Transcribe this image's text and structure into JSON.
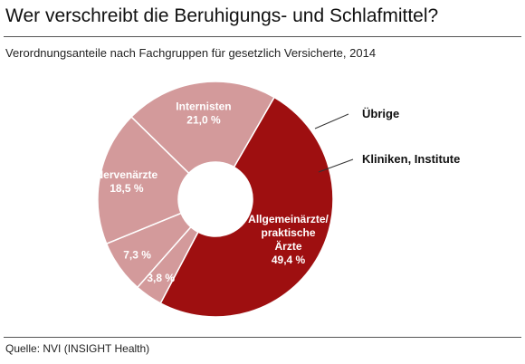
{
  "title": "Wer verschreibt die Beruhigungs- und Schlafmittel?",
  "subtitle": "Verordnungsanteile nach Fachgruppen für gesetzlich Versicherte, 2014",
  "source": "Quelle: NVI (INSIGHT Health)",
  "chart_data": {
    "type": "pie",
    "donut": true,
    "slices": [
      {
        "label": [
          "Allgemeinärzte/",
          "praktische",
          "Ärzte"
        ],
        "value": 49.4,
        "value_text": "49,4 %",
        "color": "#9e0f10"
      },
      {
        "label": [],
        "external_label": "Übrige",
        "value": 3.8,
        "value_text": "3,8 %",
        "color": "#d39a9b"
      },
      {
        "label": [],
        "external_label": "Kliniken, Institute",
        "value": 7.3,
        "value_text": "7,3 %",
        "color": "#d39a9b"
      },
      {
        "label": [
          "Nervenärzte"
        ],
        "value": 18.5,
        "value_text": "18,5 %",
        "color": "#d39a9b"
      },
      {
        "label": [
          "Internisten"
        ],
        "value": 21.0,
        "value_text": "21,0 %",
        "color": "#d39a9b"
      }
    ]
  }
}
